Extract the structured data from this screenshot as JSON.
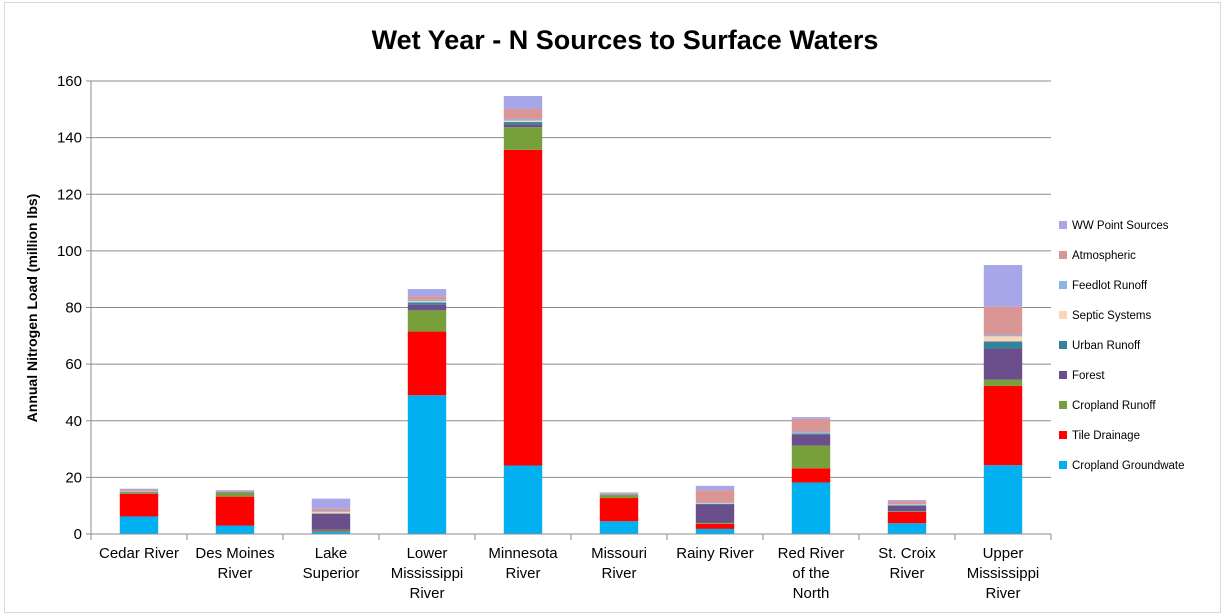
{
  "chart_data": {
    "type": "bar",
    "stacked": true,
    "title": "Wet Year - N Sources to Surface Waters",
    "ylabel": "Annual Nitrogen Load (million lbs)",
    "xlabel": "",
    "ylim": [
      0,
      160
    ],
    "yticks": [
      0,
      20,
      40,
      60,
      80,
      100,
      120,
      140,
      160
    ],
    "grid": true,
    "legend_position": "right",
    "categories": [
      [
        "Cedar River"
      ],
      [
        "Des Moines",
        "River"
      ],
      [
        "Lake",
        "Superior"
      ],
      [
        "Lower",
        "Mississippi",
        "River"
      ],
      [
        "Minnesota",
        "River"
      ],
      [
        "Missouri",
        "River"
      ],
      [
        "Rainy River"
      ],
      [
        "Red River",
        "of the",
        "North"
      ],
      [
        "St. Croix",
        "River"
      ],
      [
        "Upper",
        "Mississippi",
        "River"
      ]
    ],
    "series": [
      {
        "name": "Cropland Groundwate",
        "color": "#00b0f0",
        "values": [
          6.2,
          3.0,
          1.0,
          49.0,
          24.2,
          4.5,
          1.8,
          18.2,
          3.8,
          24.3
        ]
      },
      {
        "name": "Tile Drainage",
        "color": "#ff0000",
        "values": [
          8.0,
          10.2,
          0.3,
          22.5,
          111.5,
          8.2,
          1.8,
          5.0,
          4.0,
          28.0
        ]
      },
      {
        "name": "Cropland Runoff",
        "color": "#77a03c",
        "values": [
          0.4,
          1.3,
          0.3,
          7.5,
          8.0,
          1.0,
          0.3,
          8.0,
          0.2,
          2.2
        ]
      },
      {
        "name": "Forest",
        "color": "#6a4f8c",
        "values": [
          0.2,
          0.2,
          5.5,
          2.0,
          1.0,
          0.2,
          6.5,
          4.0,
          2.0,
          11.0
        ]
      },
      {
        "name": "Urban Runoff",
        "color": "#31849b",
        "values": [
          0.1,
          0.1,
          0.2,
          0.8,
          0.8,
          0.1,
          0.2,
          0.3,
          0.2,
          2.5
        ]
      },
      {
        "name": "Septic Systems",
        "color": "#fcd5b5",
        "values": [
          0.1,
          0.1,
          0.5,
          0.4,
          0.5,
          0.1,
          0.2,
          0.2,
          0.2,
          1.8
        ]
      },
      {
        "name": "Feedlot Runoff",
        "color": "#8eb4e3",
        "values": [
          0.1,
          0.1,
          0.3,
          0.5,
          0.6,
          0.1,
          0.3,
          0.5,
          0.2,
          0.5
        ]
      },
      {
        "name": "Atmospheric",
        "color": "#da9694",
        "values": [
          0.6,
          0.3,
          1.0,
          1.3,
          3.5,
          0.3,
          4.4,
          4.5,
          1.0,
          10.0
        ]
      },
      {
        "name": "WW Point Sources",
        "color": "#a6a6e8",
        "values": [
          0.3,
          0.2,
          3.4,
          2.5,
          4.6,
          0.2,
          1.5,
          0.6,
          0.4,
          14.7
        ]
      }
    ],
    "legend_order": [
      "WW Point Sources",
      "Atmospheric",
      "Feedlot Runoff",
      "Septic Systems",
      "Urban Runoff",
      "Forest",
      "Cropland Runoff",
      "Tile Drainage",
      "Cropland Groundwate"
    ]
  }
}
